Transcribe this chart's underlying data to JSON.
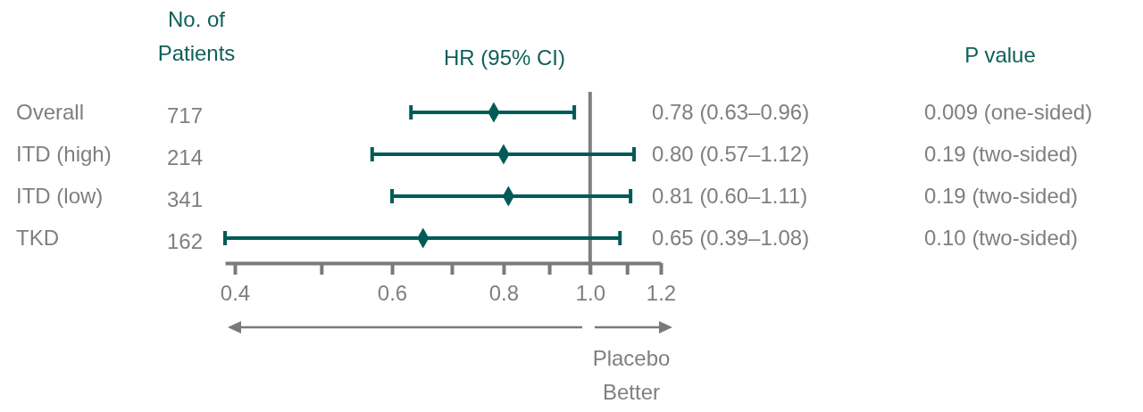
{
  "chart_data": {
    "type": "scatter",
    "orientation": "horizontal",
    "log": "x",
    "marker": "diamond",
    "xlabel": "HR (95% CI)",
    "categories": [
      "Overall",
      "ITD (high)",
      "ITD (low)",
      "TKD"
    ],
    "series": [
      {
        "color": "#005b57",
        "values": [
          0.78,
          0.8,
          0.81,
          0.65
        ],
        "errors": [
          [
            0.63,
            0.96
          ],
          [
            0.57,
            1.12
          ],
          [
            0.6,
            1.11
          ],
          [
            0.39,
            1.08
          ]
        ],
        "value_labels": [
          "0.78 (0.63–0.96)",
          "0.80 (0.57–1.12)",
          "0.81 (0.60–1.11)",
          "0.65 (0.39–1.08)"
        ]
      }
    ],
    "xlim": [
      0.39,
      1.2
    ],
    "xticks": [
      {
        "value": 0.4,
        "label": "0.4"
      },
      {
        "value": 0.5,
        "label": null
      },
      {
        "value": 0.6,
        "label": "0.6"
      },
      {
        "value": 0.7,
        "label": null
      },
      {
        "value": 0.8,
        "label": "0.8"
      },
      {
        "value": 0.9,
        "label": null
      },
      {
        "value": 1.0,
        "label": "1.0"
      },
      {
        "value": 1.1,
        "label": null
      },
      1.2
    ],
    "ref_lines": [
      {
        "axis": "x",
        "value": 1,
        "color": "#808080"
      }
    ],
    "annotations": [
      "No. of Patients",
      "717",
      "214",
      "341",
      "162",
      "P value",
      "0.009 (one-sided)",
      "0.19 (two-sided)",
      "0.19 (two-sided)",
      "0.10 (two-sided)",
      "Placebo Better"
    ]
  }
}
